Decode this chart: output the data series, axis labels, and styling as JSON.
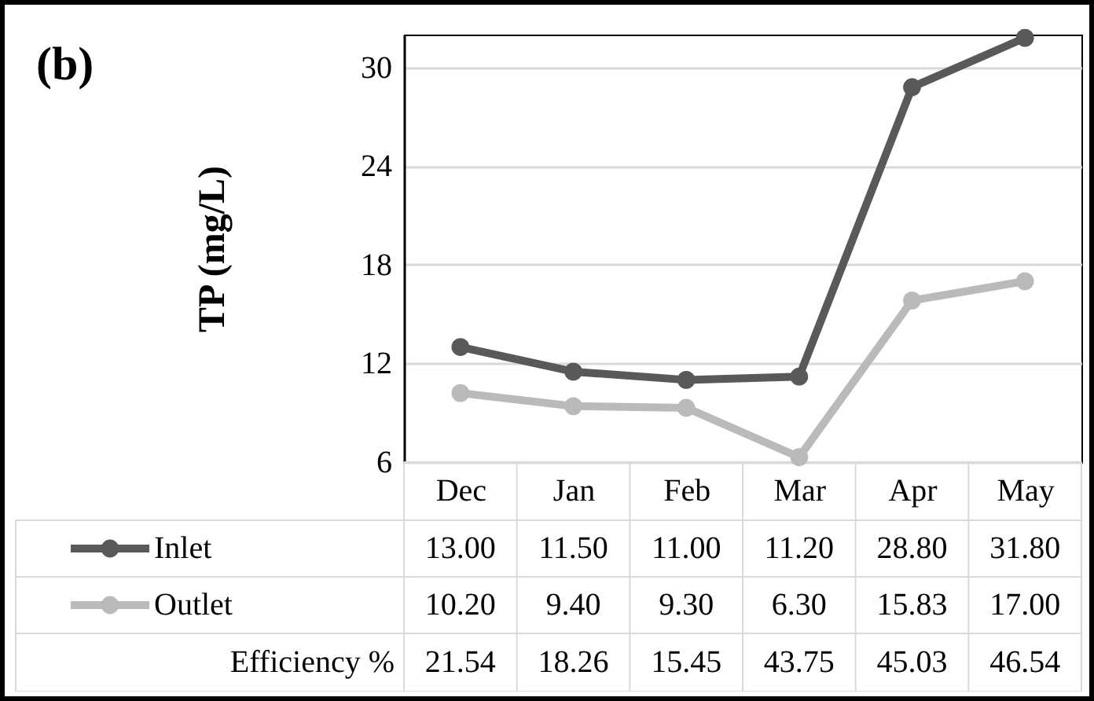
{
  "chart_data": {
    "type": "line",
    "title": "(b)",
    "ylabel": "TP (mg/L)",
    "categories": [
      "Dec",
      "Jan",
      "Feb",
      "Mar",
      "Apr",
      "May"
    ],
    "series": [
      {
        "name": "Inlet",
        "color": "#595959",
        "values": [
          13.0,
          11.5,
          11.0,
          11.2,
          28.8,
          31.8
        ],
        "value_labels": [
          "13.00",
          "11.50",
          "11.00",
          "11.20",
          "28.80",
          "31.80"
        ]
      },
      {
        "name": "Outlet",
        "color": "#bababa",
        "values": [
          10.2,
          9.4,
          9.3,
          6.3,
          15.83,
          17.0
        ],
        "value_labels": [
          "10.20",
          "9.40",
          "9.30",
          "6.30",
          "15.83",
          "17.00"
        ]
      }
    ],
    "annotations": [
      "Efficiency %",
      "21.54",
      "18.26",
      "15.45",
      "43.75",
      "45.03",
      "46.54"
    ],
    "ylim": [
      6,
      32
    ],
    "yticks": [
      6,
      12,
      18,
      24,
      30
    ],
    "grid": "y",
    "legend": "bottom",
    "marker": "circle",
    "line_style": "solid"
  }
}
